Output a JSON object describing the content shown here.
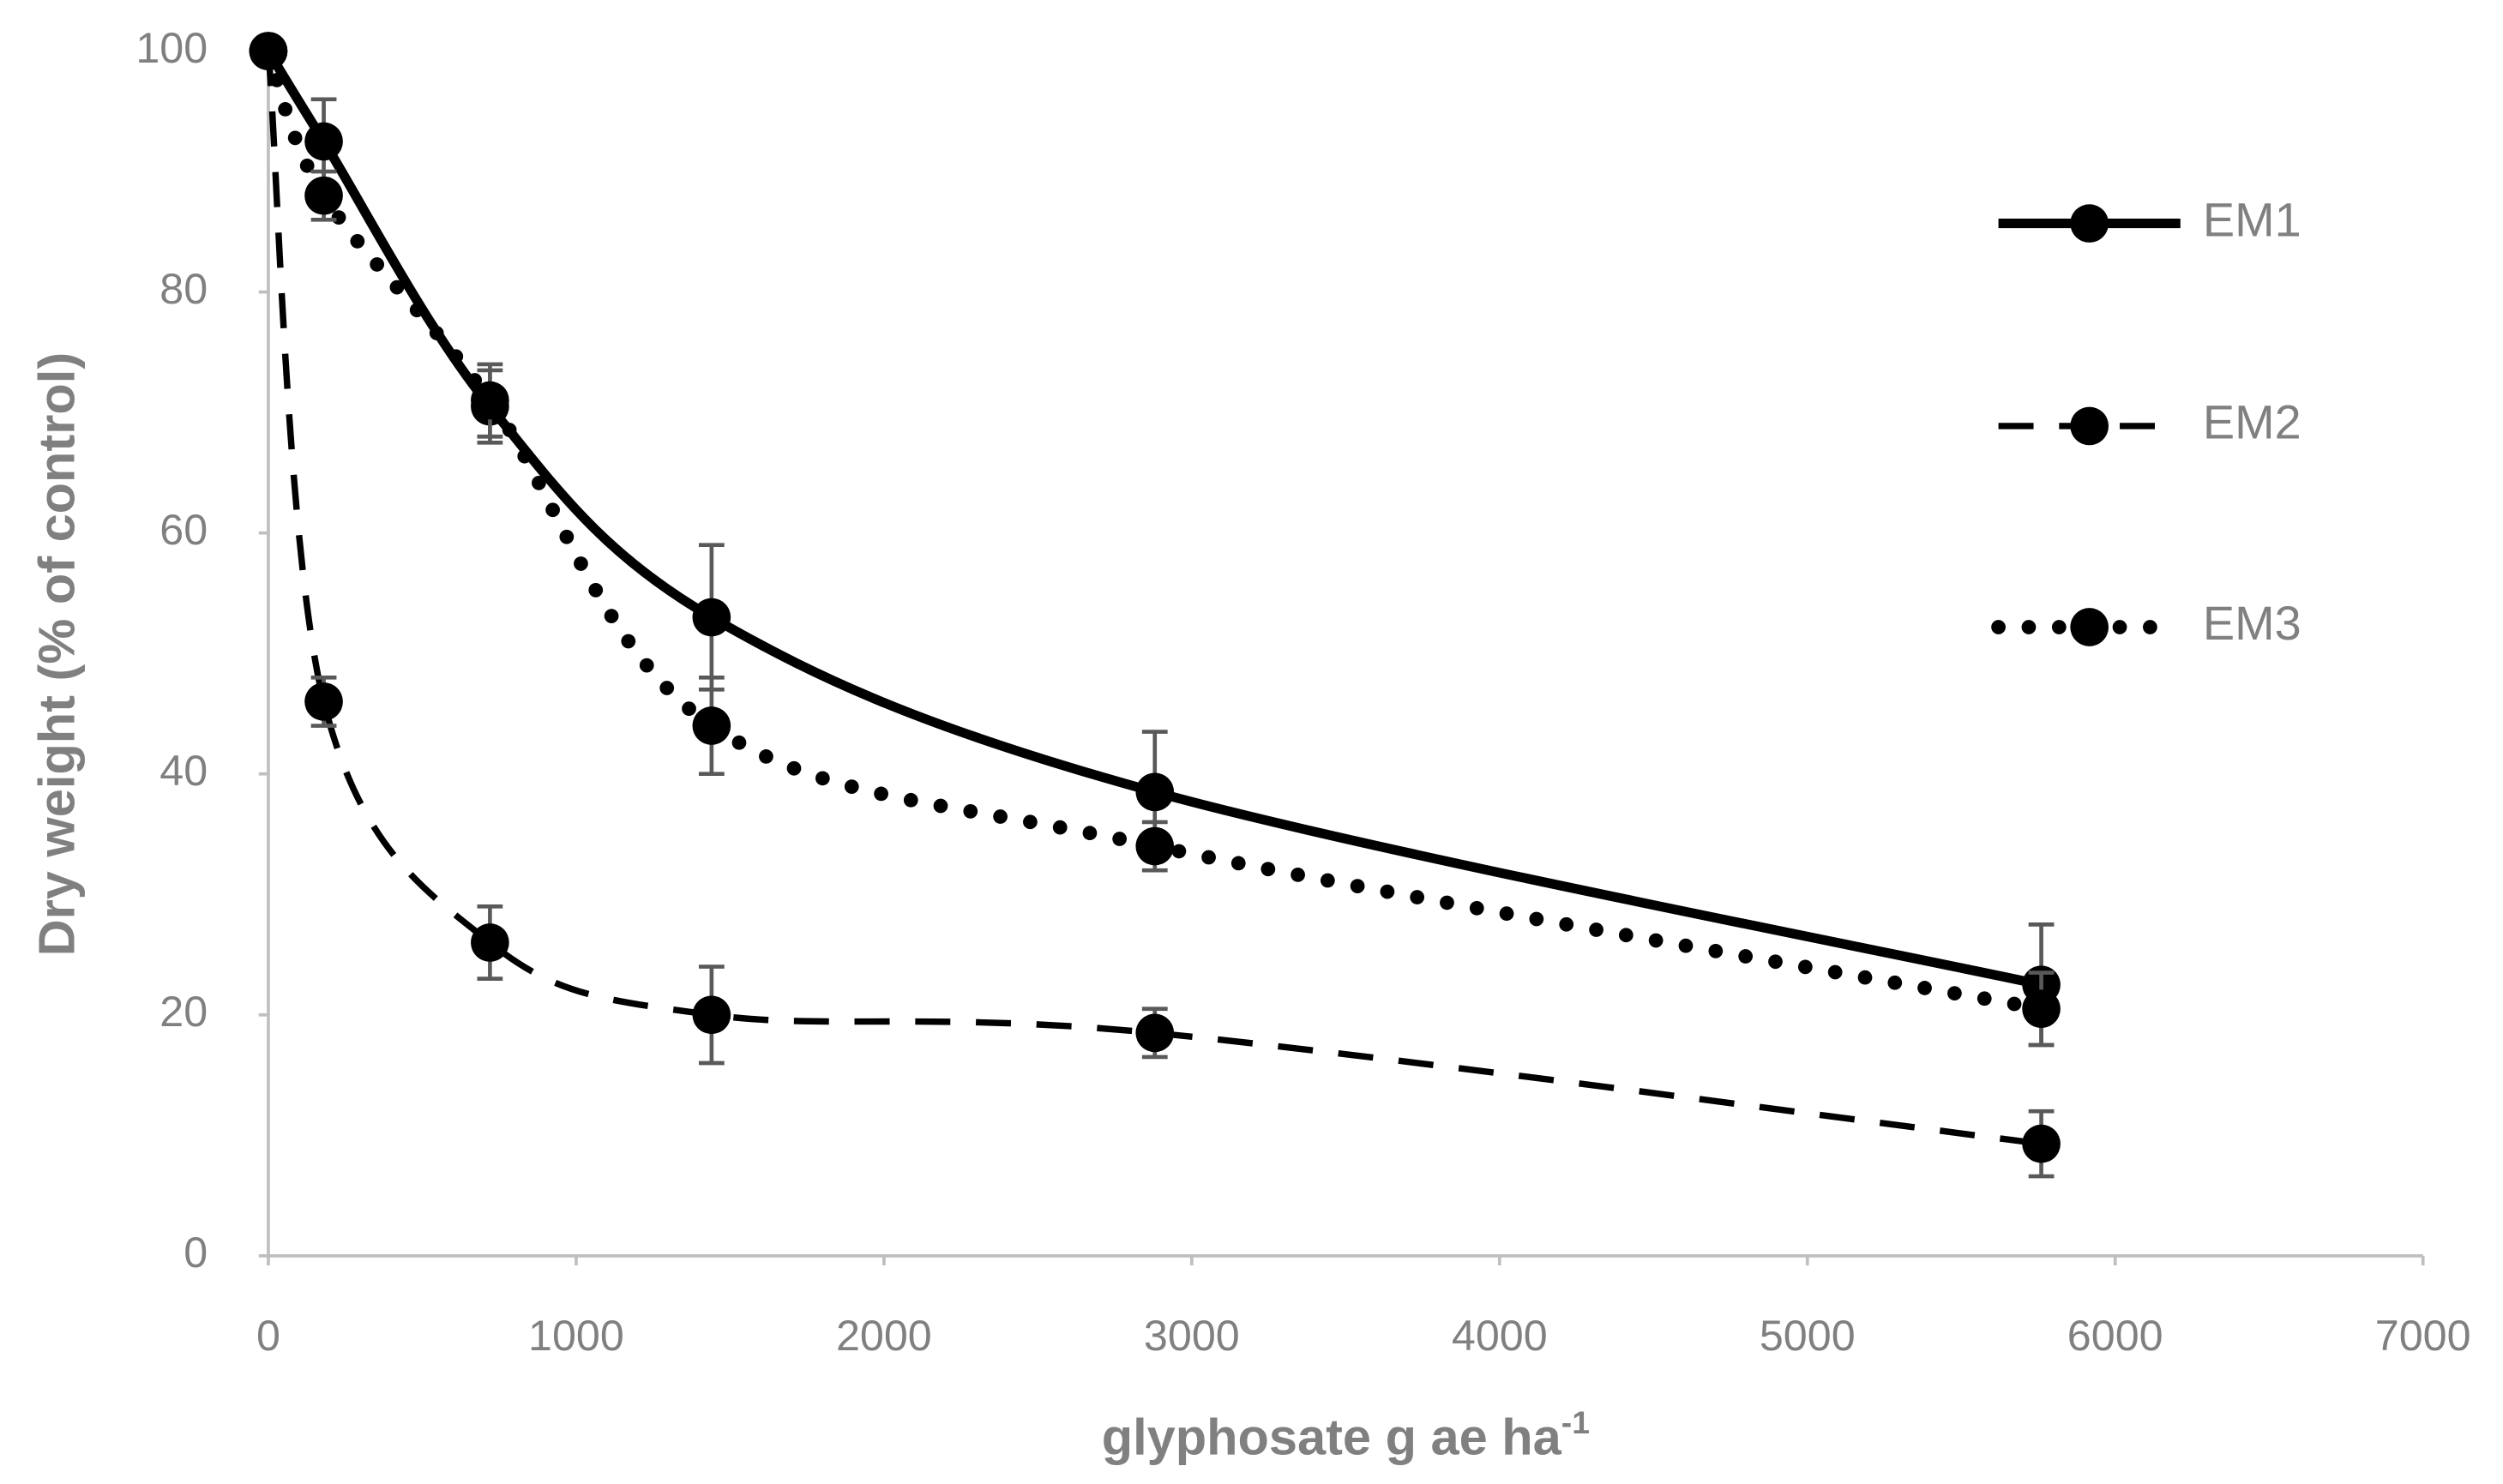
{
  "chart_data": {
    "type": "scatter",
    "x_label": "glyphosate g ae ha",
    "x_label_superscript": "-1",
    "y_label": "Dry weight (% of control)",
    "xlim": [
      0,
      7000
    ],
    "xticks": [
      0,
      1000,
      2000,
      3000,
      4000,
      5000,
      6000,
      7000
    ],
    "ylim": [
      0,
      100
    ],
    "yticks": [
      0,
      20,
      40,
      60,
      80,
      100
    ],
    "grid": false,
    "legend": "upper right",
    "x": [
      0,
      180,
      720,
      1440,
      2880,
      5760
    ],
    "series": [
      {
        "name": "EM1",
        "color": "#000000",
        "line_style": "solid",
        "values": [
          100,
          92.5,
          70.5,
          53,
          38.5,
          22.5
        ],
        "errors": [
          0,
          3.5,
          3,
          6,
          5,
          5
        ]
      },
      {
        "name": "EM2",
        "color": "#000000",
        "line_style": "dashed",
        "values": [
          100,
          46,
          26,
          20,
          18.5,
          9.3
        ],
        "errors": [
          0,
          2,
          3,
          4,
          2,
          2.7
        ]
      },
      {
        "name": "EM3",
        "color": "#000000",
        "line_style": "dotted",
        "values": [
          100,
          88,
          71,
          44,
          34,
          20.5
        ],
        "errors": [
          0,
          2,
          3,
          4,
          2,
          3
        ]
      }
    ]
  }
}
